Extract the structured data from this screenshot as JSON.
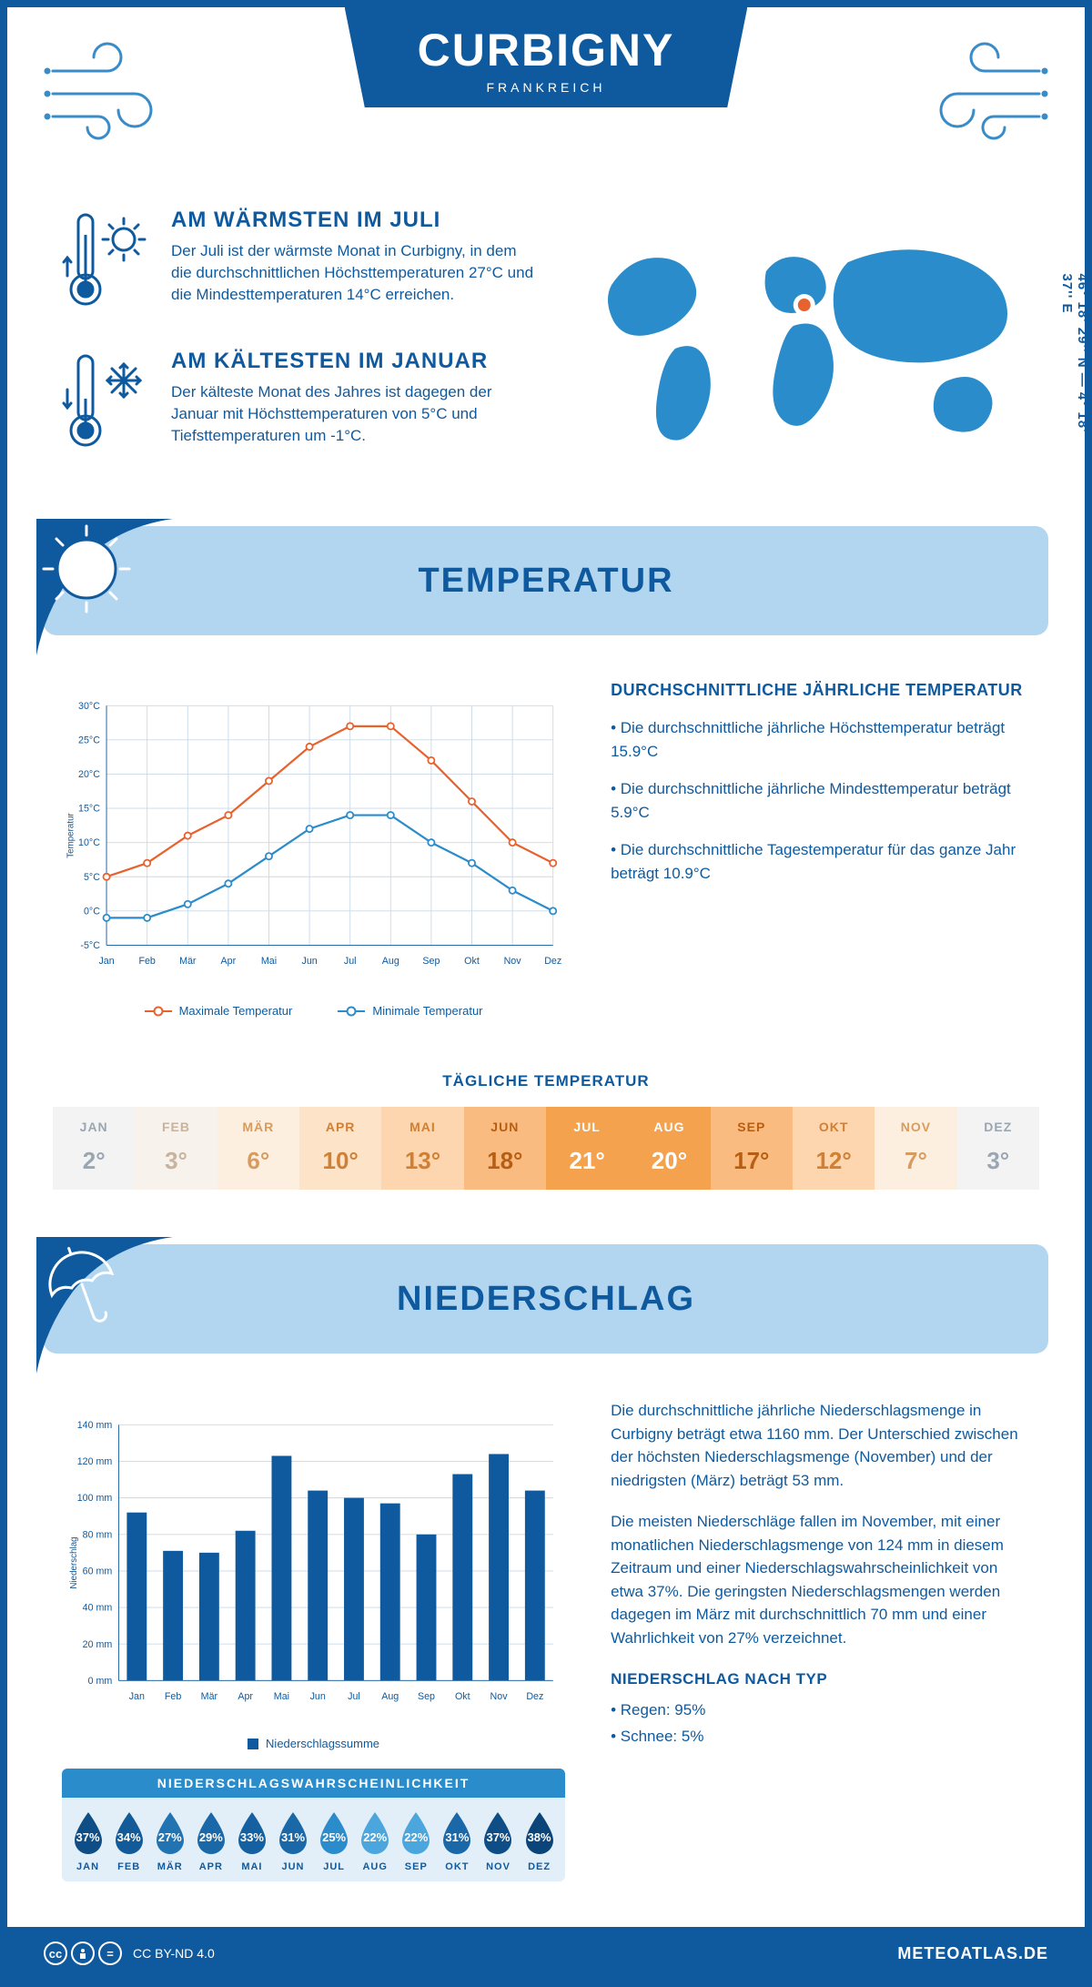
{
  "header": {
    "title": "CURBIGNY",
    "subtitle": "FRANKREICH",
    "coords": "46° 18' 29'' N — 4° 18' 37'' E"
  },
  "colors": {
    "primary": "#0f5a9e",
    "banner_bg": "#b2d6f0",
    "accent_blue": "#2b8ccb",
    "max_line": "#e8622d",
    "min_line": "#2b8ccb",
    "grid": "#c9d9e8",
    "bar": "#0f5a9e",
    "prob_row_bg": "#e3eff8",
    "world_fill": "#2b8ccb",
    "marker_ring": "#ffffff",
    "marker_fill": "#e8622d"
  },
  "intro": {
    "hot": {
      "title": "AM WÄRMSTEN IM JULI",
      "text": "Der Juli ist der wärmste Monat in Curbigny, in dem die durchschnittlichen Höchsttemperaturen 27°C und die Mindesttemperaturen 14°C erreichen."
    },
    "cold": {
      "title": "AM KÄLTESTEN IM JANUAR",
      "text": "Der kälteste Monat des Jahres ist dagegen der Januar mit Höchsttemperaturen von 5°C und Tiefsttemperaturen um -1°C."
    }
  },
  "sections": {
    "temperature": "TEMPERATUR",
    "precipitation": "NIEDERSCHLAG"
  },
  "months": [
    "Jan",
    "Feb",
    "Mär",
    "Apr",
    "Mai",
    "Jun",
    "Jul",
    "Aug",
    "Sep",
    "Okt",
    "Nov",
    "Dez"
  ],
  "months_upper": [
    "JAN",
    "FEB",
    "MÄR",
    "APR",
    "MAI",
    "JUN",
    "JUL",
    "AUG",
    "SEP",
    "OKT",
    "NOV",
    "DEZ"
  ],
  "temp_chart": {
    "y_label": "Temperatur",
    "ymin": -5,
    "ymax": 30,
    "ystep": 5,
    "max_series": [
      5,
      7,
      11,
      14,
      19,
      24,
      27,
      27,
      22,
      16,
      10,
      7
    ],
    "min_series": [
      -1,
      -1,
      1,
      4,
      8,
      12,
      14,
      14,
      10,
      7,
      3,
      0
    ],
    "legend_max": "Maximale Temperatur",
    "legend_min": "Minimale Temperatur",
    "line_width": 2.5,
    "marker_r": 4
  },
  "temp_text": {
    "heading": "DURCHSCHNITTLICHE JÄHRLICHE TEMPERATUR",
    "b1": "• Die durchschnittliche jährliche Höchsttemperatur beträgt 15.9°C",
    "b2": "• Die durchschnittliche jährliche Mindesttemperatur beträgt 5.9°C",
    "b3": "• Die durchschnittliche Tagestemperatur für das ganze Jahr beträgt 10.9°C"
  },
  "daily_temp": {
    "heading": "TÄGLICHE TEMPERATUR",
    "values": [
      "2°",
      "3°",
      "6°",
      "10°",
      "13°",
      "18°",
      "21°",
      "20°",
      "17°",
      "12°",
      "7°",
      "3°"
    ],
    "bg_colors": [
      "#f3f3f3",
      "#f7f2ec",
      "#fdefe0",
      "#fde3c8",
      "#fdd5ae",
      "#fabb80",
      "#f4a24d",
      "#f4a24d",
      "#fabb80",
      "#fdd5ae",
      "#fdefe0",
      "#f3f3f3"
    ],
    "text_colors": [
      "#9aa6b2",
      "#c7b39e",
      "#d89b5f",
      "#d07f33",
      "#d07f33",
      "#b85e13",
      "#ffffff",
      "#ffffff",
      "#b85e13",
      "#d07f33",
      "#d89b5f",
      "#9aa6b2"
    ]
  },
  "precip_chart": {
    "y_label": "Niederschlag",
    "ymin": 0,
    "ymax": 140,
    "ystep": 20,
    "y_unit": " mm",
    "values": [
      92,
      71,
      70,
      82,
      123,
      104,
      100,
      97,
      80,
      113,
      124,
      104
    ],
    "legend": "Niederschlagssumme",
    "bar_width_ratio": 0.55
  },
  "precip_text": {
    "p1": "Die durchschnittliche jährliche Niederschlagsmenge in Curbigny beträgt etwa 1160 mm. Der Unterschied zwischen der höchsten Niederschlagsmenge (November) und der niedrigsten (März) beträgt 53 mm.",
    "p2": "Die meisten Niederschläge fallen im November, mit einer monatlichen Niederschlagsmenge von 124 mm in diesem Zeitraum und einer Niederschlagswahrscheinlichkeit von etwa 37%. Die geringsten Niederschlagsmengen werden dagegen im März mit durchschnittlich 70 mm und einer Wahrlichkeit von 27% verzeichnet.",
    "type_heading": "NIEDERSCHLAG NACH TYP",
    "type_rain": "• Regen: 95%",
    "type_snow": "• Schnee: 5%"
  },
  "probability": {
    "heading": "NIEDERSCHLAGSWAHRSCHEINLICHKEIT",
    "values": [
      37,
      34,
      27,
      29,
      33,
      31,
      25,
      22,
      22,
      31,
      37,
      38
    ],
    "colors": [
      "#0f4d86",
      "#125a98",
      "#2273b2",
      "#1b68a8",
      "#1560a0",
      "#1b68a8",
      "#2b8ccb",
      "#4ba6dd",
      "#4ba6dd",
      "#1b68a8",
      "#0f4d86",
      "#0b4478"
    ]
  },
  "footer": {
    "license": "CC BY-ND 4.0",
    "site": "METEOATLAS.DE"
  }
}
